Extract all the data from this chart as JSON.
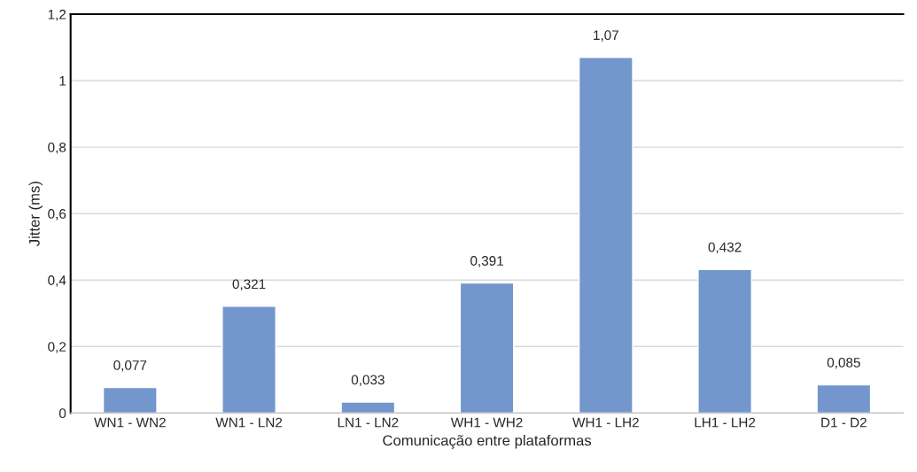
{
  "chart_data": {
    "type": "bar",
    "xlabel": "Comunicação entre plataformas",
    "ylabel": "Jitter (ms)",
    "categories": [
      "WN1 - WN2",
      "WN1 - LN2",
      "LN1 - LN2",
      "WH1 - WH2",
      "WH1 - LH2",
      "LH1 - LH2",
      "D1 - D2"
    ],
    "values": [
      0.077,
      0.321,
      0.033,
      0.391,
      1.07,
      0.432,
      0.085
    ],
    "value_labels": [
      "0,077",
      "0,321",
      "0,033",
      "0,391",
      "1,07",
      "0,432",
      "0,085"
    ],
    "color": "#7396cc",
    "ylim": [
      0,
      1.2
    ],
    "yticks": [
      0,
      {
        "value": 0.2,
        "label": "0,2"
      },
      {
        "value": 0.4,
        "label": "0,4"
      },
      {
        "value": 0.6,
        "label": "0,6"
      },
      {
        "value": 0.8,
        "label": "0,8"
      },
      1,
      {
        "value": 1.2,
        "label": "1,2"
      }
    ],
    "grid": "y"
  }
}
